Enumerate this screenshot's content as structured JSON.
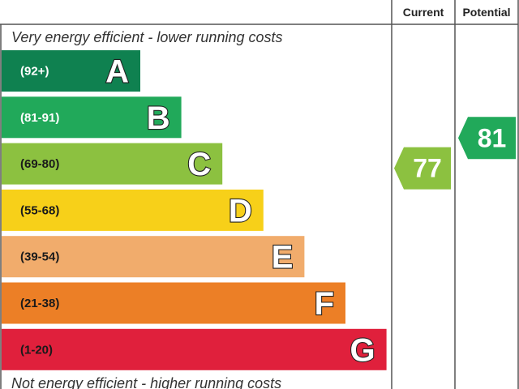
{
  "chart_data": {
    "type": "bar",
    "orientation": "horizontal",
    "header": {
      "current": "Current",
      "potential": "Potential"
    },
    "top_note": "Very energy efficient - lower running costs",
    "bottom_note": "Not energy efficient - higher running costs",
    "bands": [
      {
        "letter": "A",
        "range": "(92+)",
        "min": 92,
        "max": 100,
        "color": "#0f8150",
        "range_color": "#ffffff"
      },
      {
        "letter": "B",
        "range": "(81-91)",
        "min": 81,
        "max": 91,
        "color": "#21a95a",
        "range_color": "#ffffff"
      },
      {
        "letter": "C",
        "range": "(69-80)",
        "min": 69,
        "max": 80,
        "color": "#8cc140",
        "range_color": "#1a1a1a"
      },
      {
        "letter": "D",
        "range": "(55-68)",
        "min": 55,
        "max": 68,
        "color": "#f7d019",
        "range_color": "#1a1a1a"
      },
      {
        "letter": "E",
        "range": "(39-54)",
        "min": 39,
        "max": 54,
        "color": "#f1ac6c",
        "range_color": "#1a1a1a"
      },
      {
        "letter": "F",
        "range": "(21-38)",
        "min": 21,
        "max": 38,
        "color": "#ec7f26",
        "range_color": "#1a1a1a"
      },
      {
        "letter": "G",
        "range": "(1-20)",
        "min": 1,
        "max": 20,
        "color": "#e0203c",
        "range_color": "#1a1a1a"
      }
    ],
    "current": {
      "value": 77,
      "band": "C",
      "color": "#8cc140"
    },
    "potential": {
      "value": 81,
      "band": "B",
      "color": "#21a95a"
    }
  }
}
